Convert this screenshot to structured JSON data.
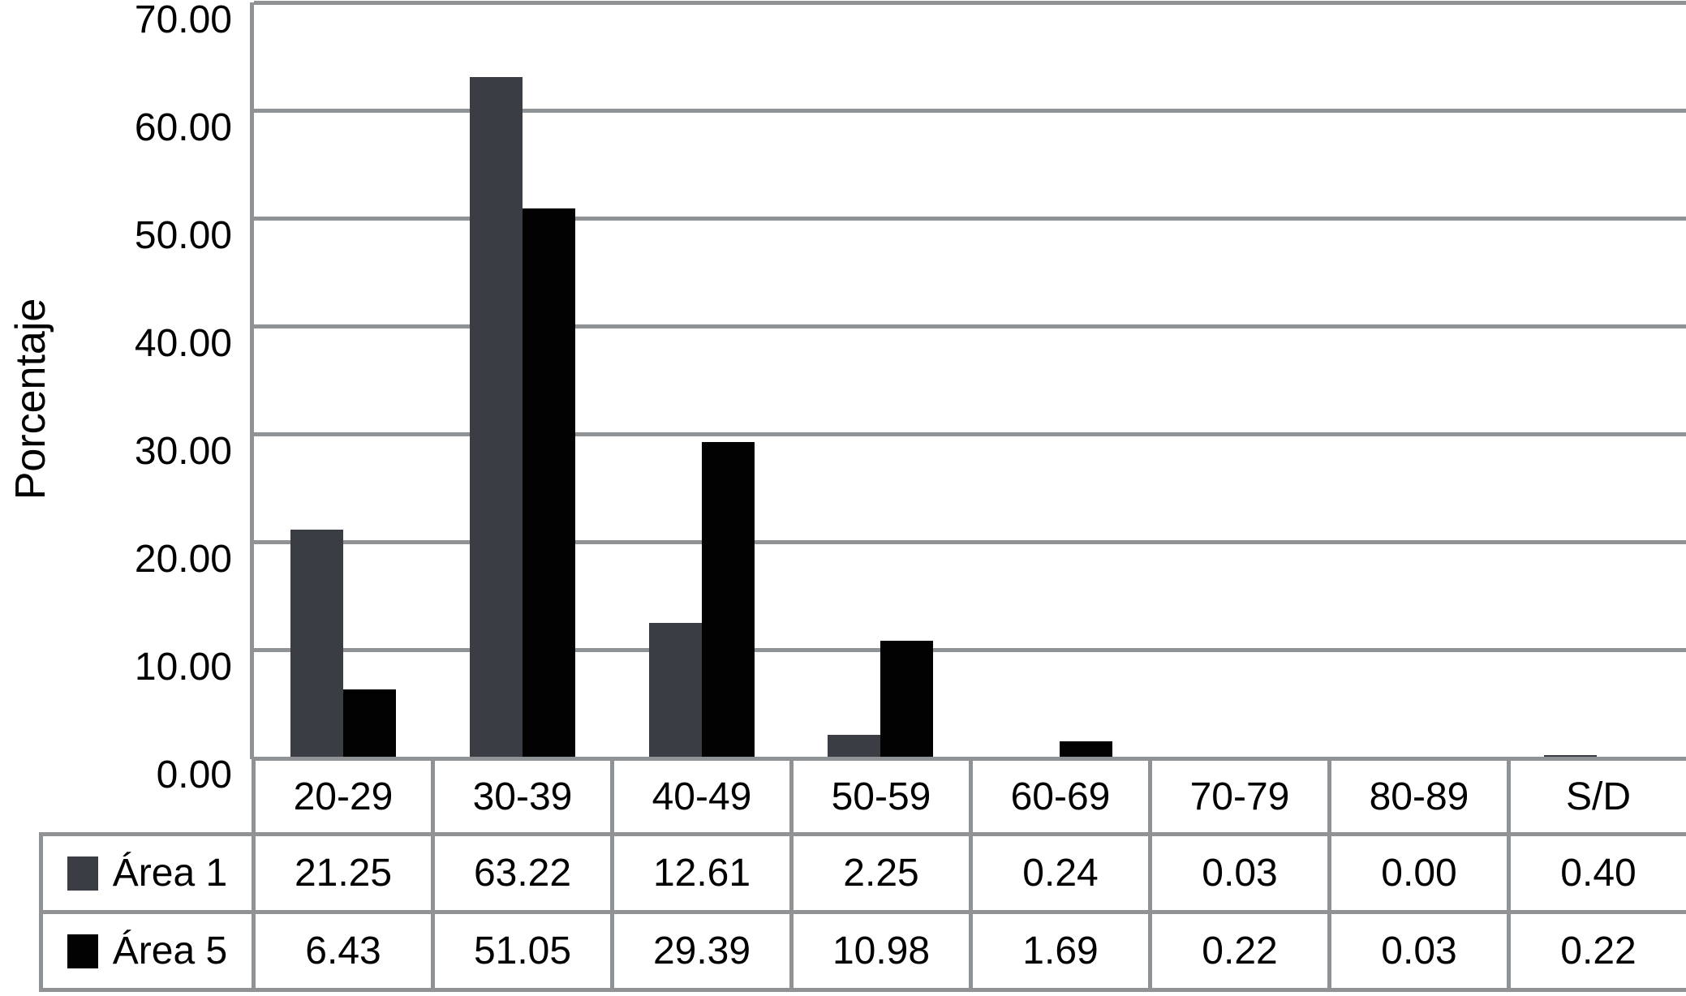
{
  "chart_data": {
    "type": "bar",
    "title": "",
    "xlabel": "",
    "ylabel": "Porcentaje",
    "categories": [
      "20-29",
      "30-39",
      "40-49",
      "50-59",
      "60-69",
      "70-79",
      "80-89",
      "S/D"
    ],
    "series": [
      {
        "name": "Área 1",
        "color": "#3a3e44",
        "values": [
          21.25,
          63.22,
          12.61,
          2.25,
          0.24,
          0.03,
          0.0,
          0.4
        ]
      },
      {
        "name": "Área 5",
        "color": "#020202",
        "values": [
          6.43,
          51.05,
          29.39,
          10.98,
          1.69,
          0.22,
          0.03,
          0.22
        ]
      }
    ],
    "ylim": [
      0,
      70
    ],
    "ytick_step": 10,
    "ytick_labels": [
      "70.00",
      "60.00",
      "50.00",
      "40.00",
      "30.00",
      "20.00",
      "10.00",
      "0.00"
    ],
    "grid": true,
    "legend_position": "table rows below x-axis"
  },
  "table": {
    "header": [
      "20-29",
      "30-39",
      "40-49",
      "50-59",
      "60-69",
      "70-79",
      "80-89",
      "S/D"
    ],
    "rows": [
      {
        "label": "Área 1",
        "key_color": "#3a3e44",
        "cells": [
          "21.25",
          "63.22",
          "12.61",
          "2.25",
          "0.24",
          "0.03",
          "0.00",
          "0.40"
        ]
      },
      {
        "label": "Área 5",
        "key_color": "#020202",
        "cells": [
          "6.43",
          "51.05",
          "29.39",
          "10.98",
          "1.69",
          "0.22",
          "0.03",
          "0.22"
        ]
      }
    ]
  },
  "colors": {
    "grid": "#8f9395",
    "background": "#ffffff",
    "text": "#000000",
    "bar_area1": "#3a3e44",
    "bar_area5": "#020202"
  }
}
